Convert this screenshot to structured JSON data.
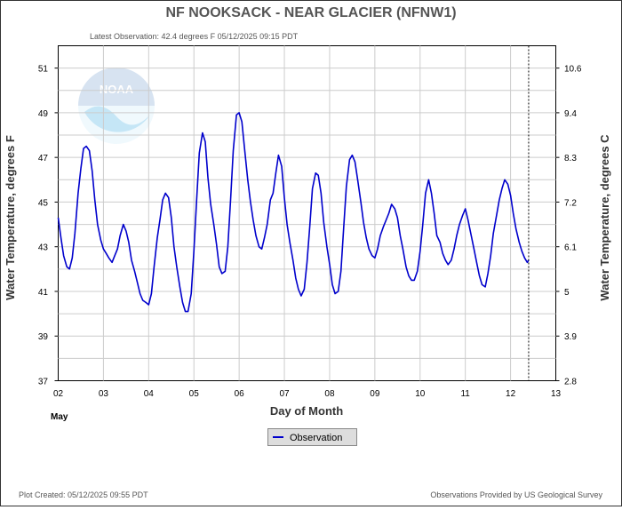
{
  "chart_data": {
    "type": "line",
    "title": "NF NOOKSACK - NEAR GLACIER  (NFNW1)",
    "subtitle": "Latest Observation: 42.4 degrees F  05/12/2025 09:15 PDT",
    "xlabel": "Day of Month",
    "ylabel_left": "Water Temperature, degrees F",
    "ylabel_right": "Water Temperature, degrees C",
    "month_label": "May",
    "x_tick_labels": [
      "02",
      "03",
      "04",
      "05",
      "06",
      "07",
      "08",
      "09",
      "10",
      "11",
      "12",
      "13"
    ],
    "y_left_ticks": [
      "37",
      "39",
      "41",
      "43",
      "45",
      "47",
      "49",
      "51"
    ],
    "y_right_ticks": [
      "2.8",
      "3.9",
      "5",
      "6.1",
      "7.2",
      "8.3",
      "9.4",
      "10.6"
    ],
    "xlim": [
      2,
      13
    ],
    "ylim_left": [
      37,
      52
    ],
    "latest_observation_marker_x": 12.4,
    "grid": true,
    "legend_position": "bottom-center",
    "series": [
      {
        "name": "Observation",
        "color": "#0000cc",
        "x": [
          2.0,
          2.06,
          2.12,
          2.19,
          2.25,
          2.31,
          2.37,
          2.44,
          2.5,
          2.56,
          2.62,
          2.69,
          2.75,
          2.81,
          2.87,
          2.94,
          3.0,
          3.06,
          3.12,
          3.19,
          3.25,
          3.31,
          3.37,
          3.44,
          3.5,
          3.56,
          3.62,
          3.69,
          3.75,
          3.81,
          3.87,
          3.94,
          4.0,
          4.06,
          4.12,
          4.19,
          4.25,
          4.31,
          4.37,
          4.44,
          4.5,
          4.56,
          4.62,
          4.69,
          4.75,
          4.81,
          4.87,
          4.94,
          5.0,
          5.06,
          5.12,
          5.19,
          5.25,
          5.31,
          5.37,
          5.44,
          5.5,
          5.56,
          5.62,
          5.69,
          5.75,
          5.81,
          5.87,
          5.94,
          6.0,
          6.06,
          6.12,
          6.19,
          6.25,
          6.31,
          6.37,
          6.44,
          6.5,
          6.56,
          6.62,
          6.69,
          6.75,
          6.81,
          6.87,
          6.94,
          7.0,
          7.06,
          7.12,
          7.19,
          7.25,
          7.31,
          7.37,
          7.44,
          7.5,
          7.56,
          7.62,
          7.69,
          7.75,
          7.81,
          7.87,
          7.94,
          8.0,
          8.06,
          8.12,
          8.19,
          8.25,
          8.31,
          8.37,
          8.44,
          8.5,
          8.56,
          8.62,
          8.69,
          8.75,
          8.81,
          8.87,
          8.94,
          9.0,
          9.06,
          9.12,
          9.19,
          9.25,
          9.31,
          9.37,
          9.44,
          9.5,
          9.56,
          9.62,
          9.69,
          9.75,
          9.81,
          9.87,
          9.94,
          10.0,
          10.06,
          10.12,
          10.19,
          10.25,
          10.31,
          10.37,
          10.44,
          10.5,
          10.56,
          10.62,
          10.69,
          10.75,
          10.81,
          10.87,
          10.94,
          11.0,
          11.06,
          11.12,
          11.19,
          11.25,
          11.31,
          11.37,
          11.44,
          11.5,
          11.56,
          11.62,
          11.69,
          11.75,
          11.81,
          11.87,
          11.94,
          12.0,
          12.06,
          12.12,
          12.19,
          12.25,
          12.31,
          12.37,
          12.4
        ],
        "values": [
          44.3,
          43.4,
          42.6,
          42.1,
          42.0,
          42.5,
          43.6,
          45.4,
          46.5,
          47.4,
          47.5,
          47.3,
          46.4,
          45.1,
          44.0,
          43.3,
          42.9,
          42.7,
          42.5,
          42.3,
          42.6,
          42.9,
          43.5,
          44.0,
          43.7,
          43.2,
          42.4,
          41.9,
          41.4,
          40.9,
          40.6,
          40.5,
          40.4,
          40.9,
          42.1,
          43.4,
          44.2,
          45.1,
          45.4,
          45.2,
          44.3,
          43.0,
          42.1,
          41.2,
          40.5,
          40.1,
          40.1,
          40.9,
          42.8,
          45.1,
          47.2,
          48.1,
          47.7,
          46.1,
          44.9,
          44.0,
          43.1,
          42.1,
          41.8,
          41.9,
          43.0,
          45.1,
          47.3,
          48.9,
          49.0,
          48.6,
          47.4,
          46.0,
          45.0,
          44.2,
          43.5,
          43.0,
          42.9,
          43.4,
          44.0,
          45.1,
          45.4,
          46.3,
          47.1,
          46.6,
          45.2,
          44.0,
          43.2,
          42.4,
          41.6,
          41.1,
          40.8,
          41.1,
          42.3,
          43.9,
          45.6,
          46.3,
          46.2,
          45.4,
          44.1,
          43.0,
          42.2,
          41.3,
          40.9,
          41.0,
          41.9,
          43.8,
          45.7,
          46.9,
          47.1,
          46.8,
          46.0,
          45.0,
          44.1,
          43.4,
          42.9,
          42.6,
          42.5,
          42.9,
          43.5,
          43.9,
          44.2,
          44.5,
          44.9,
          44.7,
          44.3,
          43.5,
          42.9,
          42.1,
          41.7,
          41.5,
          41.5,
          41.9,
          42.8,
          44.0,
          45.4,
          46.0,
          45.4,
          44.5,
          43.5,
          43.2,
          42.7,
          42.4,
          42.2,
          42.4,
          42.9,
          43.5,
          44.0,
          44.4,
          44.7,
          44.2,
          43.6,
          42.9,
          42.3,
          41.7,
          41.3,
          41.2,
          41.8,
          42.6,
          43.6,
          44.4,
          45.1,
          45.6,
          46.0,
          45.8,
          45.3,
          44.5,
          43.8,
          43.2,
          42.8,
          42.5,
          42.3,
          42.4
        ]
      }
    ]
  },
  "footer": {
    "created": "Plot Created: 05/12/2025 09:55 PDT",
    "source": "Observations Provided by US Geological Survey"
  },
  "logo": {
    "text": "NOAA",
    "color": "#5bb8e8"
  }
}
